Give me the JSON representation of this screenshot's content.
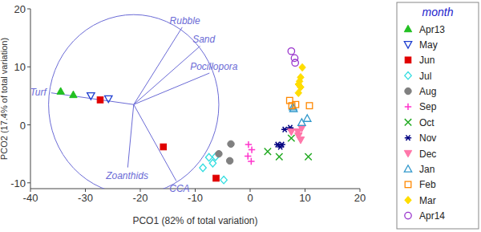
{
  "chart_data": {
    "type": "scatter",
    "x_label": "PCO1 (82% of total variation)",
    "y_label": "PCO2 (17.4% of total variation)",
    "legend_title": "month",
    "legend": "right",
    "xlim": [
      -40,
      20
    ],
    "xticks": [
      -40,
      -30,
      -20,
      -10,
      0,
      10,
      20
    ],
    "ylim": [
      -11,
      20
    ],
    "yticks": [
      -10,
      0,
      10,
      20
    ],
    "series": [
      {
        "name": "Apr13",
        "color": "#22c022",
        "marker": "triangle",
        "x": [
          -34.5,
          -32.2
        ],
        "y": [
          5.8,
          5.2
        ]
      },
      {
        "name": "May",
        "color": "#1f3fd0",
        "marker": "triangle-down-open",
        "x": [
          -29.0,
          -25.8
        ],
        "y": [
          5.0,
          4.5
        ]
      },
      {
        "name": "Jun",
        "color": "#e00000",
        "marker": "square",
        "x": [
          -27.3,
          -15.8,
          -6.2
        ],
        "y": [
          4.3,
          -3.8,
          -9.2
        ]
      },
      {
        "name": "Jul",
        "color": "#33dde0",
        "marker": "diamond-open",
        "x": [
          -8.6,
          -7.5,
          -6.8,
          -6.3,
          -4.8
        ],
        "y": [
          -7.4,
          -5.6,
          -6.6,
          -5.5,
          -9.5
        ]
      },
      {
        "name": "Aug",
        "color": "#808080",
        "marker": "circle",
        "x": [
          -5.7,
          -3.5,
          -3.7
        ],
        "y": [
          -5.0,
          -3.3,
          -6.2
        ]
      },
      {
        "name": "Sep",
        "color": "#ff33cc",
        "marker": "plus",
        "x": [
          -0.3,
          0.3,
          -0.4,
          0.2
        ],
        "y": [
          -3.4,
          -4.3,
          -5.4,
          -6.3
        ]
      },
      {
        "name": "Oct",
        "color": "#22aa22",
        "marker": "x",
        "x": [
          3.2,
          5.3,
          7.5,
          10.6
        ],
        "y": [
          -4.6,
          -5.5,
          -2.3,
          -5.5
        ]
      },
      {
        "name": "Nov",
        "color": "#000080",
        "marker": "asterisk",
        "x": [
          5.0,
          5.8,
          6.3,
          7.3,
          5.5
        ],
        "y": [
          -3.4,
          -3.4,
          -0.8,
          -0.5,
          -3.8
        ]
      },
      {
        "name": "Dec",
        "color": "#ff77aa",
        "marker": "triangle-down",
        "x": [
          7.5,
          8.7,
          9.2,
          9.4,
          8.8
        ],
        "y": [
          -1.2,
          -1.2,
          -2.6,
          -0.6,
          -1.9
        ]
      },
      {
        "name": "Jan",
        "color": "#3399cc",
        "marker": "triangle-open",
        "x": [
          7.8,
          9.4,
          10.4,
          7.9
        ],
        "y": [
          3.1,
          0.4,
          1.1,
          2.8
        ]
      },
      {
        "name": "Feb",
        "color": "#ff8800",
        "marker": "square-open",
        "x": [
          7.2,
          7.6,
          8.3,
          10.8
        ],
        "y": [
          4.2,
          3.3,
          3.5,
          3.3
        ]
      },
      {
        "name": "Mar",
        "color": "#ffdd00",
        "marker": "diamond",
        "x": [
          8.8,
          9.2,
          9.0,
          9.2,
          9.5,
          8.8
        ],
        "y": [
          5.5,
          6.5,
          7.5,
          8.2,
          9.9,
          7.0
        ]
      },
      {
        "name": "Apr14",
        "color": "#9933cc",
        "marker": "circle-open",
        "x": [
          7.5,
          8.1,
          8.2
        ],
        "y": [
          12.7,
          11.5,
          10.7
        ]
      }
    ],
    "vector_circle": {
      "center": [
        -21.2,
        3.5
      ],
      "radius": 15.5
    },
    "vectors": [
      {
        "name": "Rubble",
        "x": 0.57,
        "y": 0.86
      },
      {
        "name": "Sand",
        "x": 0.78,
        "y": 0.65
      },
      {
        "name": "Pocillopora",
        "x": 0.89,
        "y": 0.35
      },
      {
        "name": "Turf",
        "x": -0.97,
        "y": 0.13
      },
      {
        "name": "Zoanthids",
        "x": -0.07,
        "y": -0.7
      },
      {
        "name": "CCA",
        "x": 0.5,
        "y": -0.85
      }
    ]
  }
}
